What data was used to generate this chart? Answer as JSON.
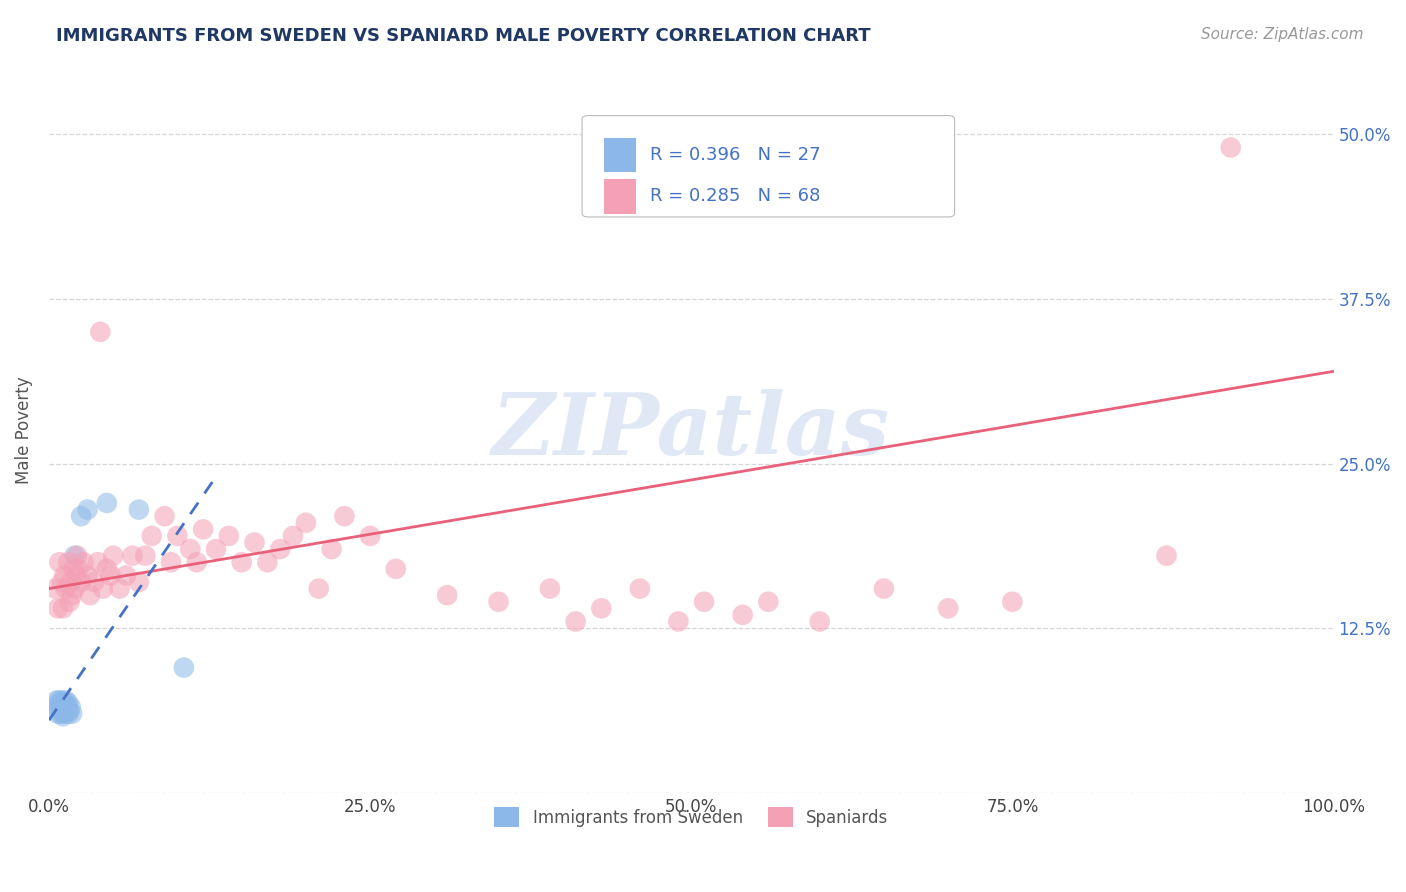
{
  "title": "IMMIGRANTS FROM SWEDEN VS SPANIARD MALE POVERTY CORRELATION CHART",
  "source_text": "Source: ZipAtlas.com",
  "ylabel": "Male Poverty",
  "legend_label_1": "Immigrants from Sweden",
  "legend_label_2": "Spaniards",
  "R1": 0.396,
  "N1": 27,
  "R2": 0.285,
  "N2": 68,
  "xlim": [
    0.0,
    1.0
  ],
  "ylim": [
    0.0,
    0.55
  ],
  "xtick_vals": [
    0.0,
    0.25,
    0.5,
    0.75,
    1.0
  ],
  "xtick_labels": [
    "0.0%",
    "25.0%",
    "50.0%",
    "75.0%",
    "100.0%"
  ],
  "ytick_vals": [
    0.0,
    0.125,
    0.25,
    0.375,
    0.5
  ],
  "ytick_labels": [
    "",
    "12.5%",
    "25.0%",
    "37.5%",
    "50.0%"
  ],
  "watermark": "ZIPatlas",
  "color_blue": "#8BB8E8",
  "color_pink": "#F4A0B5",
  "color_blue_line": "#4472C4",
  "color_pink_line": "#E8607A",
  "title_color": "#1F3864",
  "legend_r_color": "#4472C4",
  "sweden_x": [
    0.005,
    0.006,
    0.007,
    0.008,
    0.008,
    0.009,
    0.009,
    0.01,
    0.01,
    0.011,
    0.011,
    0.012,
    0.012,
    0.013,
    0.013,
    0.014,
    0.015,
    0.015,
    0.016,
    0.017,
    0.018,
    0.02,
    0.025,
    0.03,
    0.045,
    0.07,
    0.105
  ],
  "sweden_y": [
    0.065,
    0.07,
    0.06,
    0.065,
    0.07,
    0.06,
    0.068,
    0.062,
    0.07,
    0.058,
    0.065,
    0.06,
    0.068,
    0.063,
    0.07,
    0.065,
    0.06,
    0.068,
    0.062,
    0.065,
    0.06,
    0.18,
    0.21,
    0.215,
    0.22,
    0.215,
    0.095
  ],
  "spaniard_x": [
    0.005,
    0.007,
    0.008,
    0.01,
    0.011,
    0.012,
    0.013,
    0.015,
    0.016,
    0.017,
    0.018,
    0.019,
    0.02,
    0.021,
    0.022,
    0.023,
    0.025,
    0.027,
    0.03,
    0.032,
    0.035,
    0.038,
    0.04,
    0.042,
    0.045,
    0.048,
    0.05,
    0.055,
    0.06,
    0.065,
    0.07,
    0.075,
    0.08,
    0.09,
    0.095,
    0.1,
    0.11,
    0.115,
    0.12,
    0.13,
    0.14,
    0.15,
    0.16,
    0.17,
    0.18,
    0.19,
    0.2,
    0.21,
    0.22,
    0.23,
    0.25,
    0.27,
    0.31,
    0.35,
    0.39,
    0.41,
    0.43,
    0.46,
    0.49,
    0.51,
    0.54,
    0.56,
    0.6,
    0.65,
    0.7,
    0.75,
    0.87,
    0.92
  ],
  "spaniard_y": [
    0.155,
    0.14,
    0.175,
    0.16,
    0.14,
    0.165,
    0.155,
    0.175,
    0.145,
    0.16,
    0.15,
    0.17,
    0.155,
    0.165,
    0.18,
    0.17,
    0.16,
    0.175,
    0.165,
    0.15,
    0.16,
    0.175,
    0.35,
    0.155,
    0.17,
    0.165,
    0.18,
    0.155,
    0.165,
    0.18,
    0.16,
    0.18,
    0.195,
    0.21,
    0.175,
    0.195,
    0.185,
    0.175,
    0.2,
    0.185,
    0.195,
    0.175,
    0.19,
    0.175,
    0.185,
    0.195,
    0.205,
    0.155,
    0.185,
    0.21,
    0.195,
    0.17,
    0.15,
    0.145,
    0.155,
    0.13,
    0.14,
    0.155,
    0.13,
    0.145,
    0.135,
    0.145,
    0.13,
    0.155,
    0.14,
    0.145,
    0.18,
    0.49
  ],
  "pink_line_x": [
    0.0,
    1.0
  ],
  "pink_line_y": [
    0.155,
    0.32
  ],
  "blue_line_x": [
    0.0,
    0.13
  ],
  "blue_line_y": [
    0.055,
    0.24
  ]
}
